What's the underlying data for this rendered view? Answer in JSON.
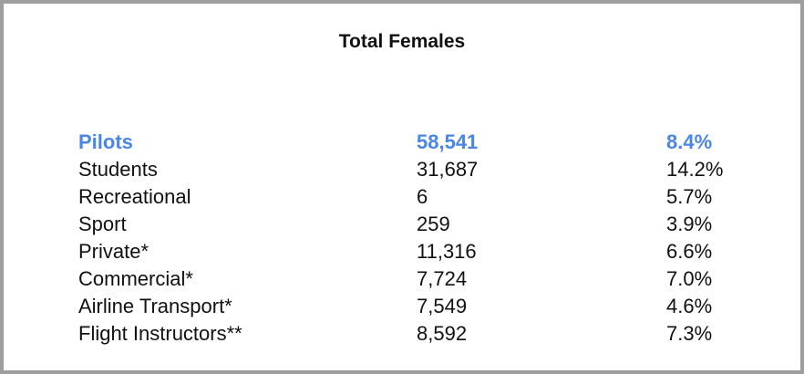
{
  "header": {
    "title": "Total Females"
  },
  "table": {
    "rows": [
      [
        "Pilots",
        "58,541",
        "8.4%"
      ],
      [
        "Students",
        "31,687",
        "14.2%"
      ],
      [
        "Recreational",
        "6",
        "5.7%"
      ],
      [
        "Sport",
        "259",
        "3.9%"
      ],
      [
        "Private*",
        "11,316",
        "6.6%"
      ],
      [
        "Commercial*",
        "7,724",
        "7.0%"
      ],
      [
        "Airline Transport*",
        "7,549",
        "4.6%"
      ],
      [
        "Flight Instructors**",
        "8,592",
        "7.3%"
      ]
    ]
  }
}
